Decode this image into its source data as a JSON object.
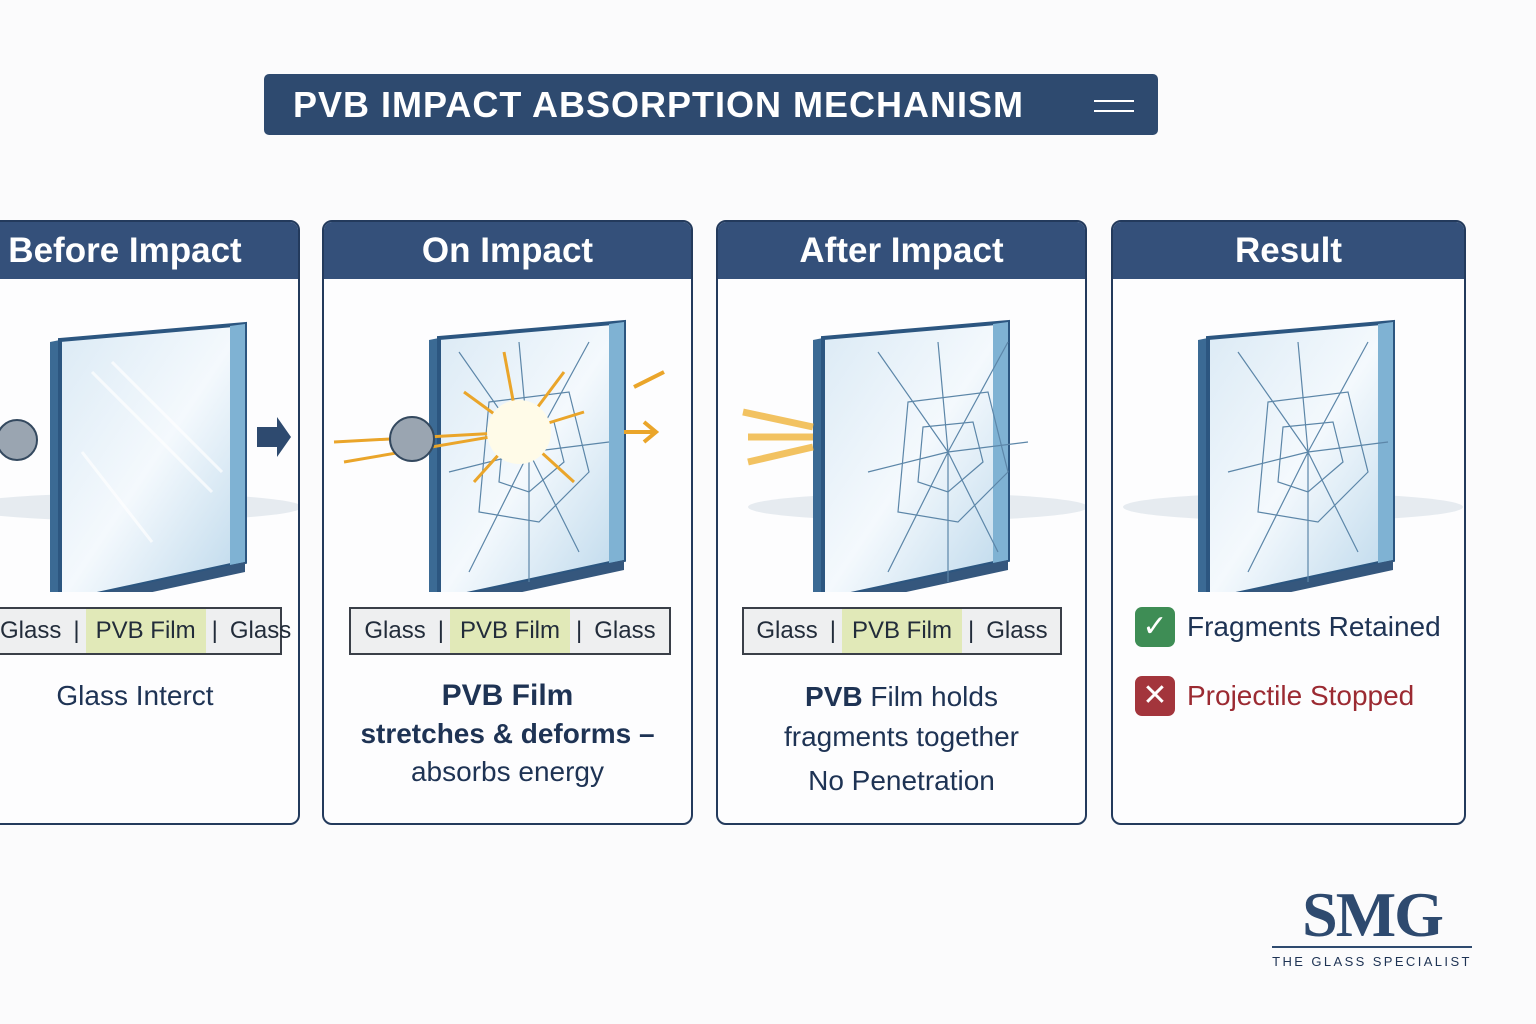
{
  "title": "PVB IMPACT ABSORPTION MECHANISM",
  "layers": {
    "glass": "Glass",
    "sep": "|",
    "pvb": "PVB Film"
  },
  "panels": [
    {
      "title": "Before Impact",
      "desc": "Glass Interct"
    },
    {
      "title": "On Impact",
      "desc_bold": "PVB Film",
      "desc_l2": "stretches & deforms –",
      "desc_l3": "absorbs energy"
    },
    {
      "title": "After Impact",
      "desc_bold": "PVB",
      "desc_l1": " Film holds",
      "desc_l2": "fragments together",
      "desc_l3": "No Penetration"
    },
    {
      "title": "Result",
      "results": [
        {
          "icon": "check-icon",
          "text": "Fragments Retained",
          "color": "#1e3354",
          "icon_color": "#3e8d55"
        },
        {
          "icon": "x-icon",
          "text": "Projectile Stopped",
          "color": "#9b2a32",
          "icon_color": "#a3353c"
        }
      ]
    }
  ],
  "logo": {
    "name": "SMG",
    "tagline": "THE GLASS SPECIALIST"
  }
}
